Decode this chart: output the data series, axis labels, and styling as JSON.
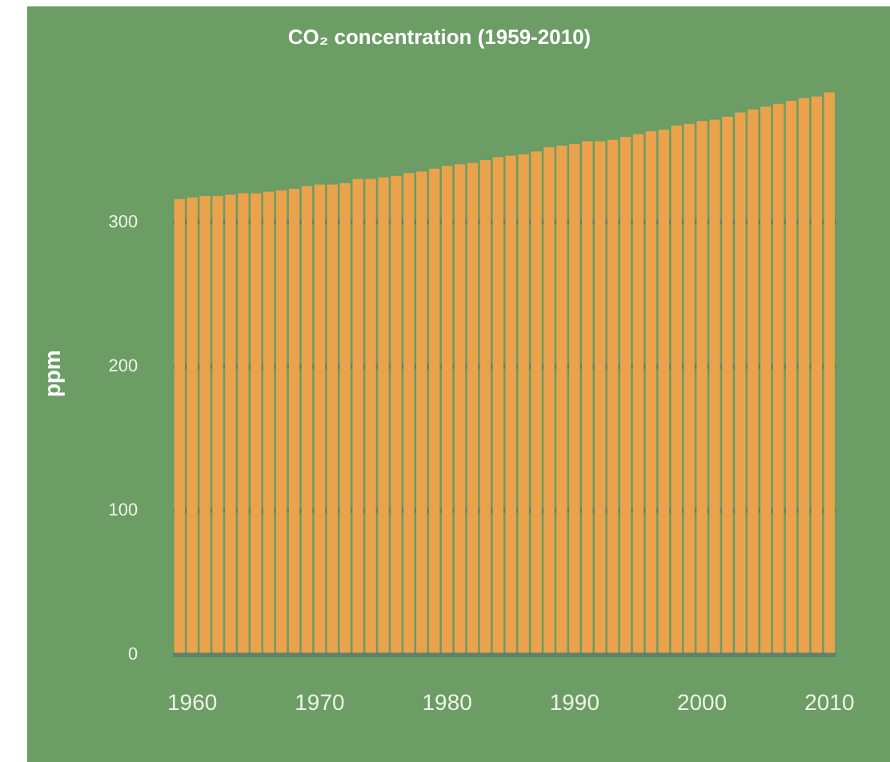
{
  "chart_data": {
    "type": "bar",
    "title": "CO₂ concentration (1959-2010)",
    "ylabel": "ppm",
    "categories": [
      null,
      "1960",
      null,
      null,
      null,
      null,
      null,
      null,
      null,
      null,
      null,
      "1970",
      null,
      null,
      null,
      null,
      null,
      null,
      null,
      null,
      null,
      "1980",
      null,
      null,
      null,
      null,
      null,
      null,
      null,
      null,
      null,
      "1990",
      null,
      null,
      null,
      null,
      null,
      null,
      null,
      null,
      null,
      "2000",
      null,
      null,
      null,
      null,
      null,
      null,
      null,
      null,
      null,
      "2010"
    ],
    "values": [
      316,
      317,
      318,
      318,
      319,
      320,
      320,
      321,
      322,
      323,
      325,
      326,
      326,
      327,
      330,
      330,
      331,
      332,
      334,
      335,
      337,
      339,
      340,
      341,
      343,
      345,
      346,
      347,
      349,
      352,
      353,
      354,
      356,
      356,
      357,
      359,
      361,
      363,
      364,
      367,
      368,
      370,
      371,
      373,
      376,
      378,
      380,
      382,
      384,
      386,
      387,
      390
    ],
    "color": "#eaa24c",
    "ylim": [
      0,
      390
    ],
    "yticks": [
      0,
      100,
      200,
      300
    ],
    "grid": "y",
    "legend": false
  }
}
